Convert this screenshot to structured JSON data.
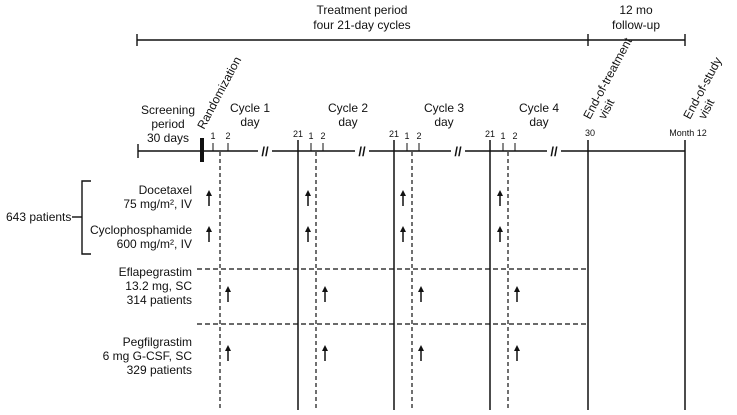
{
  "header": {
    "treatment_line1": "Treatment period",
    "treatment_line2": "four 21-day cycles",
    "followup_line1": "12 mo",
    "followup_line2": "follow-up"
  },
  "screening": {
    "line1": "Screening",
    "line2": "period",
    "line3": "30 days"
  },
  "randomization": "Randomization",
  "cycles": [
    {
      "line1": "Cycle 1",
      "line2": "day",
      "start": "1",
      "second": "2",
      "end": ""
    },
    {
      "line1": "Cycle 2",
      "line2": "day",
      "start": "1",
      "second": "2",
      "end": "21"
    },
    {
      "line1": "Cycle 3",
      "line2": "day",
      "start": "1",
      "second": "2",
      "end": "21"
    },
    {
      "line1": "Cycle 4",
      "line2": "day",
      "start": "1",
      "second": "2",
      "end": "21"
    }
  ],
  "end_of_treatment": {
    "line1": "End-of-treatment",
    "line2": "visit",
    "day": "30"
  },
  "end_of_study": {
    "line1": "End-of-study",
    "line2": "visit",
    "month": "Month 12"
  },
  "patients_total": "643 patients",
  "regimens": {
    "docetaxel": {
      "line1": "Docetaxel",
      "line2": "75 mg/m², IV"
    },
    "cyclophosphamide": {
      "line1": "Cyclophosphamide",
      "line2": "600 mg/m², IV"
    }
  },
  "arms": {
    "eflapegrastim": {
      "line1": "Eflapegrastim",
      "line2": "13.2 mg, SC",
      "line3": "314 patients"
    },
    "pegfilgrastim": {
      "line1": "Pegfilgrastim",
      "line2": "6 mg G-CSF, SC",
      "line3": "329 patients"
    }
  },
  "break_mark": "//"
}
